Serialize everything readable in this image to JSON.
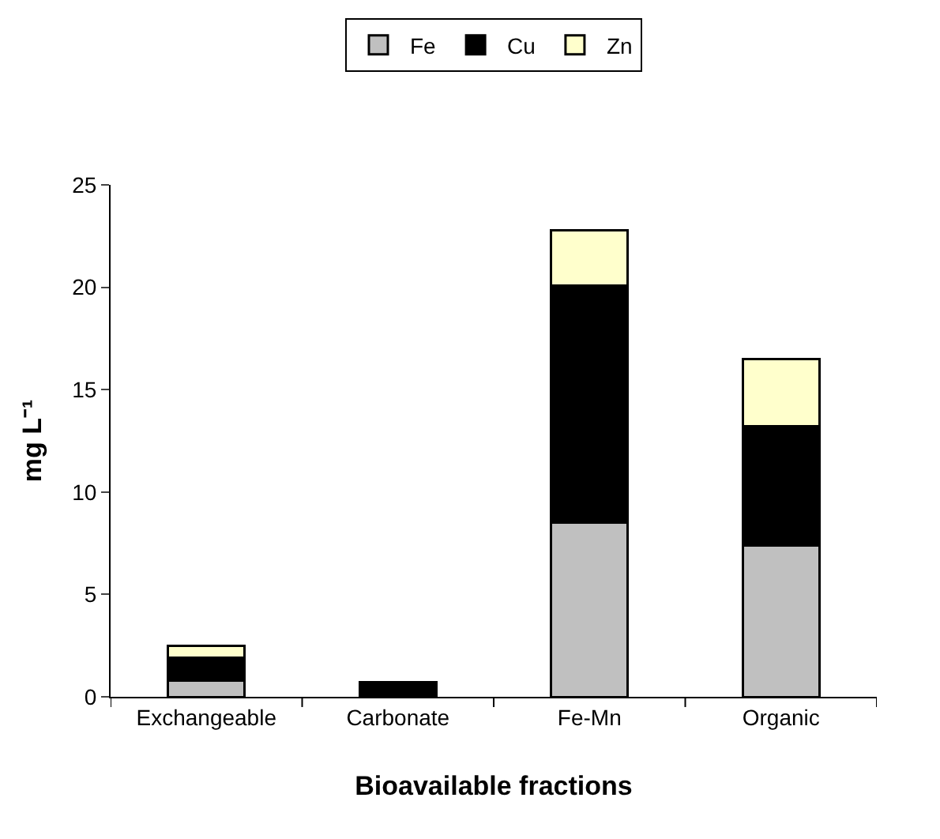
{
  "chart_data": {
    "type": "bar",
    "stacked": true,
    "xlabel": "Bioavailable fractions",
    "ylabel": "mg L⁻¹",
    "categories": [
      "Exchangeable",
      "Carbonate",
      "Fe-Mn",
      "Organic"
    ],
    "series": [
      {
        "name": "Fe",
        "color": "#c0c0c0",
        "values": [
          0.8,
          null,
          8.5,
          7.4
        ]
      },
      {
        "name": "Cu",
        "color": "#000000",
        "values": [
          1.1,
          0.7,
          11.6,
          5.8
        ]
      },
      {
        "name": "Zn",
        "color": "#ffffcc",
        "values": [
          0.6,
          null,
          2.7,
          3.3
        ]
      }
    ],
    "ylim": [
      0,
      25
    ],
    "yticks": [
      0,
      5,
      10,
      15,
      20,
      25
    ],
    "grid": false,
    "legend": "top"
  }
}
